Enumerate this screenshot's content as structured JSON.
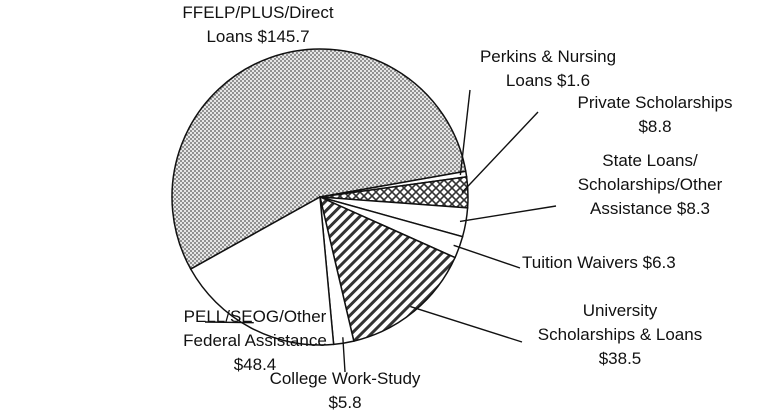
{
  "chart_data": {
    "type": "pie",
    "categories": [
      [
        "FFELP/PLUS/Direct",
        "Loans"
      ],
      [
        "Perkins & Nursing",
        "Loans"
      ],
      [
        "Private Scholarships"
      ],
      [
        "State Loans/",
        "Scholarships/Other",
        "Assistance"
      ],
      [
        "Tuition Waivers"
      ],
      [
        "University",
        "Scholarships & Loans"
      ],
      [
        "College Work-Study"
      ],
      [
        "PELL/SEOG/Other",
        "Federal Assistance"
      ]
    ],
    "values": [
      145.7,
      1.6,
      8.8,
      8.3,
      6.3,
      38.5,
      5.8,
      48.4
    ],
    "value_labels": [
      "$145.7",
      "$1.6",
      "$8.8",
      "$8.3",
      "$6.3",
      "$38.5",
      "$5.8",
      "$48.4"
    ],
    "colors": [
      "#c4c4c4",
      "#ffffff",
      "#a8a8a8",
      "#ffffff",
      "#ffffff",
      "#d8d8d8",
      "#ffffff",
      "#ffffff"
    ]
  }
}
